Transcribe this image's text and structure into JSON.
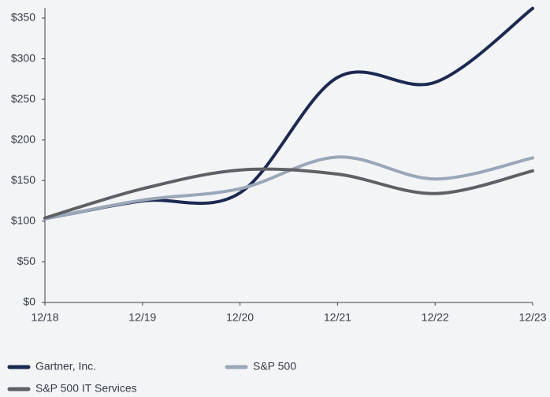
{
  "chart_data": {
    "type": "line",
    "categories": [
      "12/18",
      "12/19",
      "12/20",
      "12/21",
      "12/22",
      "12/23"
    ],
    "series": [
      {
        "name": "Gartner, Inc.",
        "color": "#1c2951",
        "values": [
          103,
          125,
          135,
          277,
          271,
          362
        ]
      },
      {
        "name": "S&P 500",
        "color": "#9aa7b8",
        "values": [
          103,
          126,
          140,
          179,
          152,
          178
        ]
      },
      {
        "name": "S&P 500 IT Services",
        "color": "#5f6066",
        "values": [
          104,
          140,
          163,
          158,
          134,
          162
        ]
      }
    ],
    "ylim": [
      0,
      350
    ],
    "yticks": [
      {
        "value": 0,
        "label": "$0"
      },
      {
        "value": 50,
        "label": "$50"
      },
      {
        "value": 100,
        "label": "$100"
      },
      {
        "value": 150,
        "label": "$150"
      },
      {
        "value": 200,
        "label": "$200"
      },
      {
        "value": 250,
        "label": "$250"
      },
      {
        "value": 300,
        "label": "$300"
      },
      {
        "value": 350,
        "label": "$350"
      }
    ],
    "legend": "bottom"
  }
}
